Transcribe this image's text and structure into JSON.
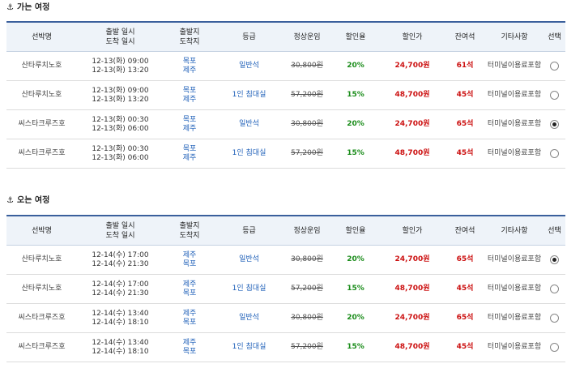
{
  "sections": [
    {
      "title": "가는 여정",
      "headers": {
        "ship": "선박명",
        "dep": "출발 일시",
        "arr": "도착 일시",
        "from": "출발지",
        "to": "도착지",
        "grade": "등급",
        "regular": "정상운임",
        "rate": "할인율",
        "disc": "할인가",
        "seats": "잔여석",
        "note": "기타사항",
        "select": "선택"
      },
      "rows": [
        {
          "ship": "산타루치노호",
          "dep": "12-13(화) 09:00",
          "arr": "12-13(화) 13:20",
          "from": "목포",
          "to": "제주",
          "grade": "일반석",
          "regular": "30,800원",
          "rate": "20%",
          "disc": "24,700원",
          "seats": "61석",
          "note": "터미널이용료포함",
          "selected": false
        },
        {
          "ship": "산타루치노호",
          "dep": "12-13(화) 09:00",
          "arr": "12-13(화) 13:20",
          "from": "목포",
          "to": "제주",
          "grade": "1인 침대실",
          "regular": "57,200원",
          "rate": "15%",
          "disc": "48,700원",
          "seats": "45석",
          "note": "터미널이용료포함",
          "selected": false
        },
        {
          "ship": "씨스타크루즈호",
          "dep": "12-13(화) 00:30",
          "arr": "12-13(화) 06:00",
          "from": "목포",
          "to": "제주",
          "grade": "일반석",
          "regular": "30,800원",
          "rate": "20%",
          "disc": "24,700원",
          "seats": "65석",
          "note": "터미널이용료포함",
          "selected": true
        },
        {
          "ship": "씨스타크루즈호",
          "dep": "12-13(화) 00:30",
          "arr": "12-13(화) 06:00",
          "from": "목포",
          "to": "제주",
          "grade": "1인 침대실",
          "regular": "57,200원",
          "rate": "15%",
          "disc": "48,700원",
          "seats": "45석",
          "note": "터미널이용료포함",
          "selected": false
        }
      ]
    },
    {
      "title": "오는 여정",
      "headers": {
        "ship": "선박명",
        "dep": "출발 일시",
        "arr": "도착 일시",
        "from": "출발지",
        "to": "도착지",
        "grade": "등급",
        "regular": "정상운임",
        "rate": "할인율",
        "disc": "할인가",
        "seats": "잔여석",
        "note": "기타사항",
        "select": "선택"
      },
      "rows": [
        {
          "ship": "산타루치노호",
          "dep": "12-14(수) 17:00",
          "arr": "12-14(수) 21:30",
          "from": "제주",
          "to": "목포",
          "grade": "일반석",
          "regular": "30,800원",
          "rate": "20%",
          "disc": "24,700원",
          "seats": "65석",
          "note": "터미널이용료포함",
          "selected": true
        },
        {
          "ship": "산타루치노호",
          "dep": "12-14(수) 17:00",
          "arr": "12-14(수) 21:30",
          "from": "제주",
          "to": "목포",
          "grade": "1인 침대실",
          "regular": "57,200원",
          "rate": "15%",
          "disc": "48,700원",
          "seats": "45석",
          "note": "터미널이용료포함",
          "selected": false
        },
        {
          "ship": "씨스타크루즈호",
          "dep": "12-14(수) 13:40",
          "arr": "12-14(수) 18:10",
          "from": "제주",
          "to": "목포",
          "grade": "일반석",
          "regular": "30,800원",
          "rate": "20%",
          "disc": "24,700원",
          "seats": "65석",
          "note": "터미널이용료포함",
          "selected": false
        },
        {
          "ship": "씨스타크루즈호",
          "dep": "12-14(수) 13:40",
          "arr": "12-14(수) 18:10",
          "from": "제주",
          "to": "목포",
          "grade": "1인 침대실",
          "regular": "57,200원",
          "rate": "15%",
          "disc": "48,700원",
          "seats": "45석",
          "note": "터미널이용료포함",
          "selected": false
        }
      ]
    }
  ]
}
